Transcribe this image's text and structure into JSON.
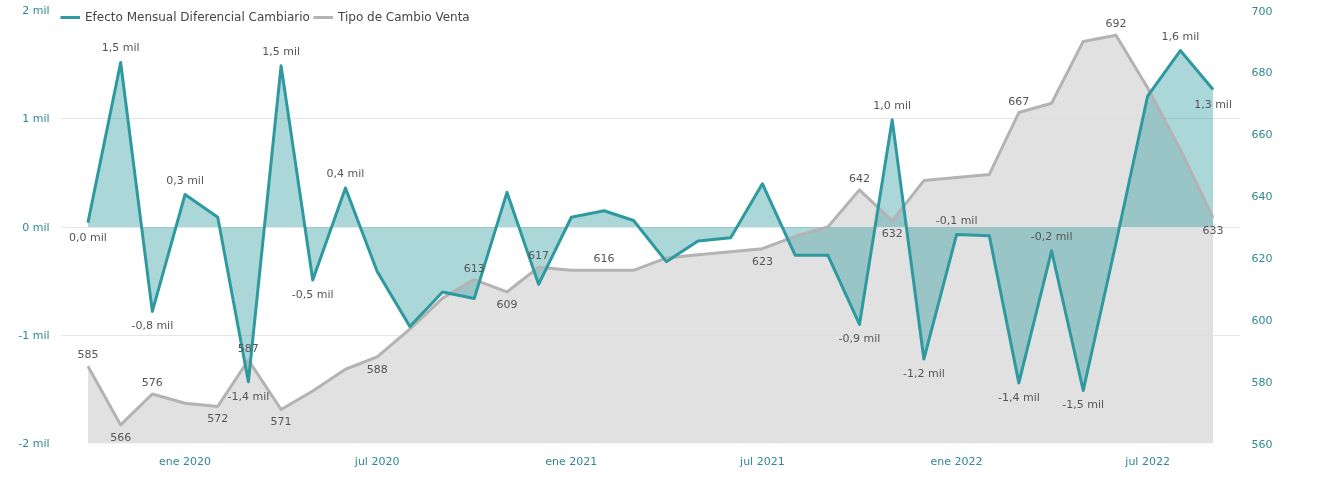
{
  "chart_data": {
    "type": "area",
    "x": [
      "2019-10",
      "2019-11",
      "2019-12",
      "2020-01",
      "2020-02",
      "2020-03",
      "2020-04",
      "2020-05",
      "2020-06",
      "2020-07",
      "2020-08",
      "2020-09",
      "2020-10",
      "2020-11",
      "2020-12",
      "2021-01",
      "2021-02",
      "2021-03",
      "2021-04",
      "2021-05",
      "2021-06",
      "2021-07",
      "2021-08",
      "2021-09",
      "2021-10",
      "2021-11",
      "2021-12",
      "2022-01",
      "2022-02",
      "2022-03",
      "2022-04",
      "2022-05",
      "2022-06",
      "2022-07",
      "2022-08",
      "2022-09"
    ],
    "series": [
      {
        "name": "Efecto Mensual Diferencial Cambiario",
        "color": "#2e9aa0",
        "values": [
          0.04,
          1.52,
          -0.78,
          0.3,
          0.09,
          -1.43,
          1.49,
          -0.49,
          0.36,
          -0.41,
          -0.92,
          -0.6,
          -0.66,
          0.32,
          -0.53,
          0.09,
          0.15,
          0.06,
          -0.32,
          -0.13,
          -0.1,
          0.4,
          -0.26,
          -0.26,
          -0.9,
          0.99,
          -1.22,
          -0.07,
          -0.08,
          -1.44,
          -0.22,
          -1.51,
          -0.15,
          1.21,
          1.63,
          1.27
        ],
        "value_labels": [
          "0,0 mil",
          "1,5 mil",
          "-0,8 mil",
          "0,3 mil",
          null,
          "-1,4 mil",
          "1,5 mil",
          "-0,5 mil",
          "0,4 mil",
          null,
          null,
          null,
          null,
          null,
          null,
          null,
          null,
          null,
          null,
          null,
          null,
          null,
          null,
          null,
          "-0,9 mil",
          "1,0 mil",
          "-1,2 mil",
          "-0,1 mil",
          null,
          "-1,4 mil",
          "-0,2 mil",
          "-1,5 mil",
          null,
          null,
          "1,6 mil",
          "1,3 mil"
        ]
      },
      {
        "name": "Tipo de Cambio Venta",
        "color": "#b3b3b3",
        "axis": "y2",
        "values": [
          585,
          566,
          576,
          573,
          572,
          587,
          571,
          577,
          584,
          588,
          597,
          607,
          613,
          609,
          617,
          616,
          616,
          616,
          620,
          621,
          622,
          623,
          627,
          630,
          642,
          632,
          645,
          646,
          647,
          667,
          670,
          690,
          692,
          675,
          655,
          633
        ],
        "value_labels": [
          "585",
          "566",
          "576",
          null,
          "572",
          "587",
          "571",
          null,
          null,
          "588",
          null,
          null,
          "613",
          "609",
          "617",
          null,
          "616",
          null,
          null,
          null,
          null,
          "623",
          null,
          null,
          "642",
          "632",
          null,
          null,
          null,
          "667",
          null,
          null,
          "692",
          null,
          null,
          "633"
        ]
      }
    ],
    "xlim": [
      "2019-09-05",
      "2022-09-27"
    ],
    "xticks": [
      {
        "value": "2020-01",
        "label": "ene 2020"
      },
      {
        "value": "2020-07",
        "label": "jul 2020"
      },
      {
        "value": "2021-01",
        "label": "ene 2021"
      },
      {
        "value": "2021-07",
        "label": "jul 2021"
      },
      {
        "value": "2022-01",
        "label": "ene 2022"
      },
      {
        "value": "2022-07",
        "label": "jul 2022"
      }
    ],
    "ylim": [
      -2,
      2
    ],
    "yticks": [
      {
        "value": -2,
        "label": "-2 mil"
      },
      {
        "value": -1,
        "label": "-1 mil"
      },
      {
        "value": 0,
        "label": "0 mil"
      },
      {
        "value": 1,
        "label": "1 mil"
      },
      {
        "value": 2,
        "label": "2 mil"
      }
    ],
    "y2lim": [
      560,
      700
    ],
    "y2ticks": [
      560,
      580,
      600,
      620,
      640,
      660,
      680,
      700
    ],
    "grid": "y",
    "legend": "top left",
    "marker": "none",
    "line_style": "solid"
  }
}
